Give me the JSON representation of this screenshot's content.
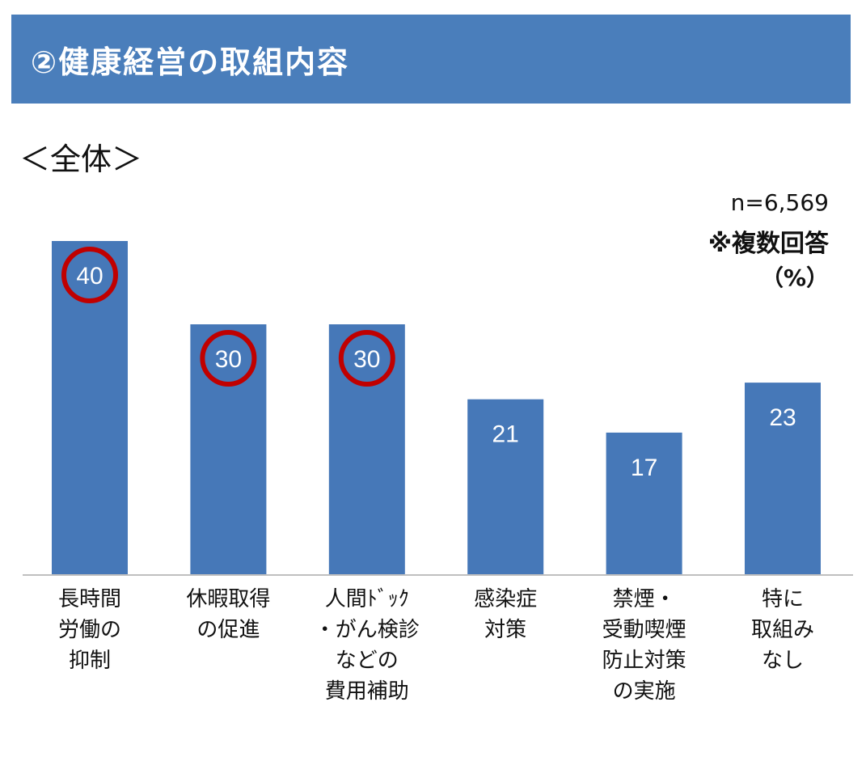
{
  "header": {
    "title": "②健康経営の取組内容",
    "subtitle": "＜全体＞"
  },
  "notes": {
    "n": "n=6,569",
    "multi": "※複数回答",
    "unit": "（%）"
  },
  "colors": {
    "bar": "#4678b8",
    "banner": "#4a7ebb",
    "highlight_ring": "#c00000"
  },
  "chart_data": {
    "type": "bar",
    "categories": [
      "長時間\n労働の\n抑制",
      "休暇取得\nの促進",
      "人間ﾄﾞｯｸ\n・がん検診\nなどの\n費用補助",
      "感染症\n対策",
      "禁煙・\n受動喫煙\n防止対策\nの実施",
      "特に\n取組み\nなし"
    ],
    "values": [
      40,
      30,
      30,
      21,
      17,
      23
    ],
    "highlighted": [
      true,
      true,
      true,
      false,
      false,
      false
    ],
    "data_labels": [
      "40",
      "30",
      "30",
      "21",
      "17",
      "23"
    ],
    "ylim": [
      0,
      46
    ],
    "grid": false,
    "legend": "none"
  }
}
